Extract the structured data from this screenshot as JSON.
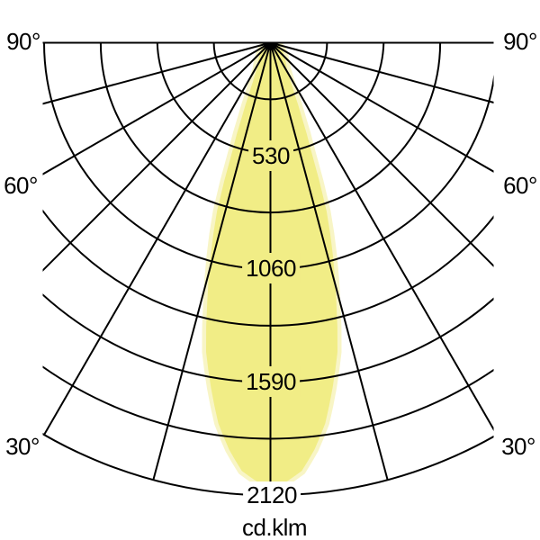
{
  "chart_data": {
    "type": "polar_photometric",
    "title": "",
    "unit_label": "cd.klm",
    "max_value": 2120,
    "ring_step": 265,
    "ring_values": [
      265,
      530,
      795,
      1060,
      1325,
      1590,
      1855,
      2120
    ],
    "labeled_rings": [
      530,
      1060,
      1590,
      2120
    ],
    "angle_grid_step_deg": 15,
    "angle_lines_deg": [
      0,
      15,
      30,
      45,
      60,
      75,
      90
    ],
    "angle_tick_labels": [
      "90°",
      "60°",
      "30°"
    ],
    "legend_position": "none",
    "grid": true,
    "colors": {
      "grid_line": "#000000",
      "beam_fill": "#F1ED86",
      "beam_halo": "#F8F5C6",
      "background": "#ffffff",
      "text": "#000000"
    },
    "beam_profile": [
      [
        0,
        2080
      ],
      [
        2,
        2055
      ],
      [
        4,
        2010
      ],
      [
        6,
        1915
      ],
      [
        8,
        1800
      ],
      [
        10,
        1640
      ],
      [
        12,
        1480
      ],
      [
        14,
        1250
      ],
      [
        16,
        1040
      ],
      [
        18,
        830
      ],
      [
        20,
        540
      ],
      [
        22,
        370
      ],
      [
        24,
        260
      ],
      [
        26,
        200
      ],
      [
        28,
        165
      ],
      [
        30,
        140
      ],
      [
        35,
        115
      ],
      [
        40,
        95
      ],
      [
        45,
        80
      ],
      [
        50,
        70
      ],
      [
        55,
        60
      ],
      [
        60,
        50
      ],
      [
        65,
        40
      ],
      [
        70,
        30
      ],
      [
        75,
        22
      ],
      [
        80,
        15
      ],
      [
        85,
        10
      ],
      [
        90,
        6
      ]
    ]
  },
  "labels": {
    "angle_90": "90°",
    "angle_60": "60°",
    "angle_30": "30°",
    "ring_530": "530",
    "ring_1060": "1060",
    "ring_1590": "1590",
    "ring_2120": "2120",
    "unit": "cd.klm"
  }
}
